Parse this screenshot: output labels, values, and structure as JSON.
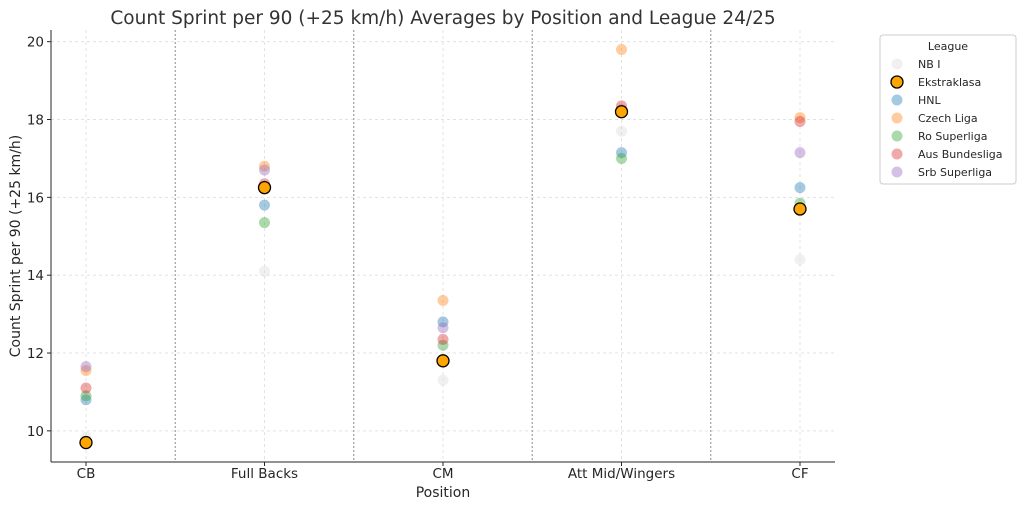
{
  "chart_data": {
    "type": "scatter",
    "title": "Count Sprint per 90 (+25 km/h)  Averages by Position and League  24/25",
    "xlabel": "Position",
    "ylabel": "Count Sprint per 90 (+25 km/h)",
    "categories": [
      "CB",
      "Full Backs",
      "CM",
      "Att Mid/Wingers",
      "CF"
    ],
    "ylim": [
      9.2,
      20.3
    ],
    "yticks": [
      10,
      12,
      14,
      16,
      18,
      20
    ],
    "grid": true,
    "legend_title": "League",
    "legend_position": "outside-top-right",
    "highlight": "Ekstraklasa",
    "series": [
      {
        "name": "NB I",
        "color": "#d9d9d9",
        "values": [
          9.85,
          14.1,
          11.3,
          17.7,
          14.4
        ]
      },
      {
        "name": "Ekstraklasa",
        "color": "#ffa500",
        "values": [
          9.7,
          16.25,
          11.8,
          18.2,
          15.7
        ]
      },
      {
        "name": "HNL",
        "color": "#1f77b4",
        "values": [
          10.8,
          15.8,
          12.8,
          17.15,
          16.25
        ]
      },
      {
        "name": "Czech Liga",
        "color": "#ff7f0e",
        "values": [
          11.55,
          16.8,
          13.35,
          19.8,
          18.05
        ]
      },
      {
        "name": "Ro Superliga",
        "color": "#2ca02c",
        "values": [
          10.9,
          15.35,
          12.2,
          17.0,
          15.85
        ]
      },
      {
        "name": "Aus Bundesliga",
        "color": "#d62728",
        "values": [
          11.1,
          16.35,
          12.35,
          18.35,
          17.95
        ]
      },
      {
        "name": "Srb Superliga",
        "color": "#9467bd",
        "values": [
          11.65,
          16.7,
          12.65,
          18.25,
          17.15
        ]
      }
    ]
  }
}
